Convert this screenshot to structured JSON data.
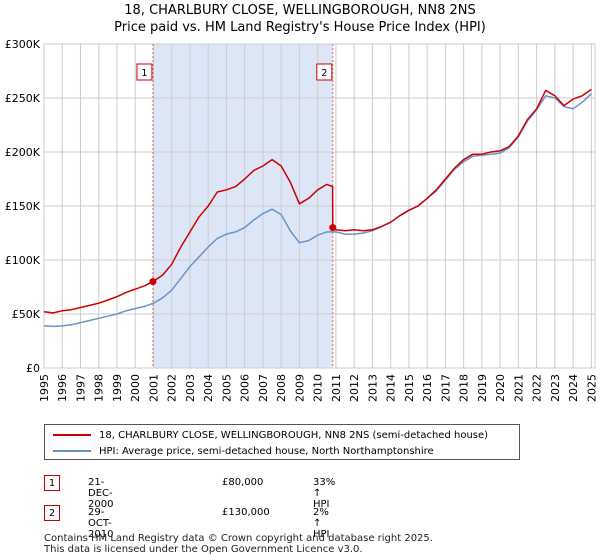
{
  "header": {
    "title": "18, CHARLBURY CLOSE, WELLINGBOROUGH, NN8 2NS",
    "subtitle": "Price paid vs. HM Land Registry's House Price Index (HPI)"
  },
  "chart_data": {
    "type": "line",
    "title": "18, CHARLBURY CLOSE, WELLINGBOROUGH, NN8 2NS",
    "subtitle": "Price paid vs. HM Land Registry's House Price Index (HPI)",
    "xlabel": "",
    "ylabel": "",
    "xlim": [
      1995,
      2025.2
    ],
    "ylim": [
      0,
      300000
    ],
    "y_ticks": [
      0,
      50000,
      100000,
      150000,
      200000,
      250000,
      300000
    ],
    "y_tick_labels": [
      "£0",
      "£50K",
      "£100K",
      "£150K",
      "£200K",
      "£250K",
      "£300K"
    ],
    "x_tick_labels": [
      "1995",
      "1996",
      "1997",
      "1998",
      "1999",
      "2000",
      "2001",
      "2002",
      "2003",
      "2004",
      "2005",
      "2006",
      "2007",
      "2008",
      "2009",
      "2010",
      "2011",
      "2012",
      "2013",
      "2014",
      "2015",
      "2016",
      "2017",
      "2018",
      "2019",
      "2020",
      "2021",
      "2022",
      "2023",
      "2024",
      "2025"
    ],
    "grid": true,
    "shaded_region": [
      2000.97,
      2010.83
    ],
    "series": [
      {
        "name": "18, CHARLBURY CLOSE, WELLINGBOROUGH, NN8 2NS (semi-detached house)",
        "color": "#cc0000",
        "x": [
          1995.0,
          1995.5,
          1996.0,
          1996.5,
          1997.0,
          1997.5,
          1998.0,
          1998.5,
          1999.0,
          1999.5,
          2000.0,
          2000.5,
          2000.97,
          2001.5,
          2002.0,
          2002.5,
          2003.0,
          2003.5,
          2004.0,
          2004.5,
          2005.0,
          2005.5,
          2006.0,
          2006.5,
          2007.0,
          2007.5,
          2008.0,
          2008.5,
          2009.0,
          2009.5,
          2010.0,
          2010.5,
          2010.82,
          2010.83,
          2011.0,
          2011.5,
          2012.0,
          2012.5,
          2013.0,
          2013.5,
          2014.0,
          2014.5,
          2015.0,
          2015.5,
          2016.0,
          2016.5,
          2017.0,
          2017.5,
          2018.0,
          2018.5,
          2019.0,
          2019.5,
          2020.0,
          2020.5,
          2021.0,
          2021.5,
          2022.0,
          2022.5,
          2023.0,
          2023.5,
          2024.0,
          2024.5,
          2025.0
        ],
        "y": [
          52000,
          51000,
          53000,
          54000,
          56000,
          58000,
          60000,
          63000,
          66000,
          70000,
          73000,
          76000,
          80000,
          86000,
          96000,
          112000,
          126000,
          140000,
          150000,
          163000,
          165000,
          168000,
          175000,
          183000,
          187000,
          193000,
          187000,
          172000,
          152000,
          157000,
          165000,
          170000,
          168000,
          130000,
          128000,
          127000,
          128000,
          127000,
          128000,
          131000,
          135000,
          141000,
          146000,
          150000,
          157000,
          165000,
          175000,
          185000,
          193000,
          198000,
          198000,
          200000,
          201000,
          205000,
          215000,
          230000,
          240000,
          257000,
          252000,
          243000,
          249000,
          252000,
          258000
        ]
      },
      {
        "name": "HPI: Average price, semi-detached house, North Northamptonshire",
        "color": "#6a93c8",
        "x": [
          1995.0,
          1995.5,
          1996.0,
          1996.5,
          1997.0,
          1997.5,
          1998.0,
          1998.5,
          1999.0,
          1999.5,
          2000.0,
          2000.5,
          2001.0,
          2001.5,
          2002.0,
          2002.5,
          2003.0,
          2003.5,
          2004.0,
          2004.5,
          2005.0,
          2005.5,
          2006.0,
          2006.5,
          2007.0,
          2007.5,
          2008.0,
          2008.5,
          2009.0,
          2009.5,
          2010.0,
          2010.5,
          2011.0,
          2011.5,
          2012.0,
          2012.5,
          2013.0,
          2013.5,
          2014.0,
          2014.5,
          2015.0,
          2015.5,
          2016.0,
          2016.5,
          2017.0,
          2017.5,
          2018.0,
          2018.5,
          2019.0,
          2019.5,
          2020.0,
          2020.5,
          2021.0,
          2021.5,
          2022.0,
          2022.5,
          2023.0,
          2023.5,
          2024.0,
          2024.5,
          2025.0
        ],
        "y": [
          39000,
          38500,
          39000,
          40000,
          42000,
          44000,
          46000,
          48000,
          50000,
          53000,
          55000,
          57000,
          60000,
          65000,
          72000,
          83000,
          94000,
          103000,
          112000,
          120000,
          124000,
          126000,
          130000,
          137000,
          143000,
          147000,
          142000,
          127000,
          116000,
          118000,
          123000,
          126000,
          126000,
          124000,
          124000,
          125000,
          127000,
          131000,
          135000,
          141000,
          146000,
          150000,
          157000,
          164000,
          174000,
          184000,
          191000,
          196000,
          197000,
          198000,
          199000,
          204000,
          214000,
          229000,
          239000,
          252000,
          250000,
          242000,
          240000,
          246000,
          254000
        ]
      }
    ],
    "sales": [
      {
        "label": "1",
        "x": 2000.97,
        "price": 80000
      },
      {
        "label": "2",
        "x": 2010.83,
        "price": 130000
      }
    ],
    "sale_line_color": "#dd6666",
    "shade_color": "#dde6f7",
    "grid_color": "#cccccc"
  },
  "legend": {
    "items": [
      {
        "label": "18, CHARLBURY CLOSE, WELLINGBOROUGH, NN8 2NS (semi-detached house)",
        "color": "#cc0000"
      },
      {
        "label": "HPI: Average price, semi-detached house, North Northamptonshire",
        "color": "#6a93c8"
      }
    ]
  },
  "sales_table": [
    {
      "num": "1",
      "date": "21-DEC-2000",
      "price": "£80,000",
      "hpi": "33% ↑ HPI"
    },
    {
      "num": "2",
      "date": "29-OCT-2010",
      "price": "£130,000",
      "hpi": "2% ↑ HPI"
    }
  ],
  "footer": {
    "line1": "Contains HM Land Registry data © Crown copyright and database right 2025.",
    "line2": "This data is licensed under the Open Government Licence v3.0."
  }
}
